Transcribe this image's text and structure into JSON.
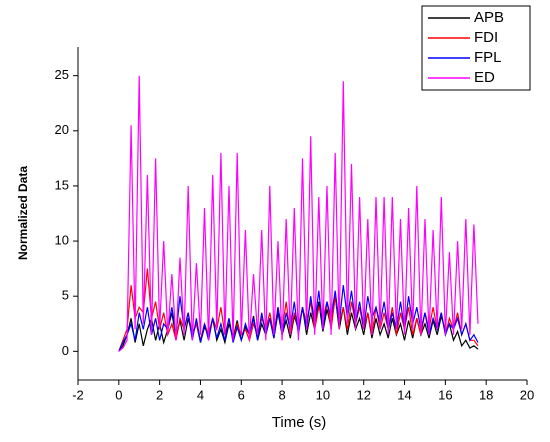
{
  "chart_data": {
    "type": "line",
    "xlabel": "Time (s)",
    "ylabel": "Normalized Data",
    "x": [
      0,
      0.2,
      0.4,
      0.6,
      0.8,
      1.0,
      1.2,
      1.4,
      1.6,
      1.8,
      2.0,
      2.2,
      2.4,
      2.6,
      2.8,
      3.0,
      3.2,
      3.4,
      3.6,
      3.8,
      4.0,
      4.2,
      4.4,
      4.6,
      4.8,
      5.0,
      5.2,
      5.4,
      5.6,
      5.8,
      6.0,
      6.2,
      6.4,
      6.6,
      6.8,
      7.0,
      7.2,
      7.4,
      7.6,
      7.8,
      8.0,
      8.2,
      8.4,
      8.6,
      8.8,
      9.0,
      9.2,
      9.4,
      9.6,
      9.8,
      10.0,
      10.2,
      10.4,
      10.6,
      10.8,
      11.0,
      11.2,
      11.4,
      11.6,
      11.8,
      12.0,
      12.2,
      12.4,
      12.6,
      12.8,
      13.0,
      13.2,
      13.4,
      13.6,
      13.8,
      14.0,
      14.2,
      14.4,
      14.6,
      14.8,
      15.0,
      15.2,
      15.4,
      15.6,
      15.8,
      16.0,
      16.2,
      16.4,
      16.6,
      16.8,
      17.0,
      17.2,
      17.4,
      17.6
    ],
    "series": [
      {
        "name": "APB",
        "color": "#000000",
        "values": [
          0,
          0.5,
          1.5,
          3,
          0.8,
          2.5,
          0.5,
          2,
          3,
          1,
          2.5,
          0.8,
          2,
          3.5,
          1.2,
          2.8,
          1,
          3,
          1.5,
          2.5,
          0.8,
          2.2,
          1.5,
          3,
          1,
          2,
          0.8,
          2.5,
          1.2,
          2.8,
          1,
          2.2,
          1.5,
          3.2,
          1,
          2.5,
          1.5,
          3,
          1.2,
          3.5,
          1.5,
          2.8,
          1.2,
          3.2,
          2,
          4,
          1.5,
          3.5,
          2,
          4.5,
          1.8,
          3.8,
          2.2,
          5,
          2,
          4,
          1.5,
          3.5,
          2,
          3,
          1.5,
          3.5,
          1.2,
          3,
          1.5,
          2.5,
          1.2,
          3,
          1.5,
          2.5,
          1,
          2.8,
          1.2,
          3,
          1.5,
          2.5,
          1.2,
          2.8,
          1.5,
          3.2,
          1.8,
          2.5,
          1,
          1.8,
          0.5,
          1,
          0.3,
          0.5,
          0.2
        ]
      },
      {
        "name": "FDI",
        "color": "#ff0000",
        "values": [
          0,
          1,
          2,
          6,
          3,
          4,
          3.5,
          7.5,
          3,
          4.5,
          2,
          3.5,
          1.5,
          2.5,
          1,
          3,
          2,
          3.5,
          1.5,
          2.5,
          1,
          2.5,
          1.5,
          3,
          2,
          4,
          1.5,
          3,
          1,
          2.5,
          1.5,
          2,
          1,
          2.5,
          1.5,
          3,
          2,
          3.5,
          1.5,
          4,
          2,
          4.5,
          1.5,
          3.5,
          2,
          4,
          2.5,
          4.5,
          2,
          4,
          3,
          4.5,
          2,
          5,
          2.5,
          4,
          2,
          4.5,
          2.5,
          4,
          2,
          3.5,
          1.5,
          4,
          2,
          3.5,
          2,
          4,
          1.5,
          3.5,
          2,
          4,
          1.5,
          3,
          1.5,
          3.5,
          2,
          4,
          2,
          3.5,
          1.5,
          3,
          2,
          3.5,
          1.5,
          2.5,
          1,
          1,
          0.5
        ]
      },
      {
        "name": "FPL",
        "color": "#0000ff",
        "values": [
          0,
          0.8,
          1.5,
          2.5,
          1,
          3.5,
          2,
          4,
          1.5,
          3,
          1,
          2.5,
          2,
          4,
          1.5,
          5,
          2,
          3.5,
          1,
          3,
          0.8,
          2.5,
          1,
          3,
          1.2,
          2.5,
          1,
          3,
          0.8,
          2.2,
          1,
          2.5,
          1.5,
          3,
          1,
          3.5,
          1.5,
          3,
          1.2,
          4,
          1.5,
          3.5,
          2,
          4.5,
          1.5,
          4,
          2,
          5,
          2.5,
          5.5,
          2,
          4.5,
          3,
          5.5,
          2.5,
          6,
          3,
          5.5,
          2.5,
          4.5,
          2,
          5,
          3,
          4,
          2.5,
          4.5,
          2,
          3.5,
          2,
          4.5,
          2,
          5,
          2.5,
          4,
          2,
          3.5,
          1.5,
          3,
          2,
          3.5,
          1.5,
          2.5,
          2,
          3,
          1.5,
          2.5,
          1,
          1.5,
          0.8
        ]
      },
      {
        "name": "ED",
        "color": "#ff00ff",
        "values": [
          0,
          0.3,
          1,
          20.5,
          2,
          25,
          2.5,
          16,
          1.5,
          17.5,
          2,
          10,
          1.5,
          7,
          1,
          8.5,
          1.5,
          15,
          1,
          8,
          1.5,
          13,
          1,
          16,
          2,
          18,
          1.5,
          15,
          1,
          18,
          1.5,
          11,
          1,
          7,
          1.5,
          11,
          1,
          15,
          1.5,
          10,
          1,
          12,
          1.5,
          13,
          1,
          17.5,
          2,
          19.5,
          1.5,
          14,
          2,
          15,
          1.5,
          18,
          2,
          24.5,
          2.5,
          17,
          2,
          14,
          2,
          12,
          1.5,
          14,
          2,
          14,
          1.5,
          14,
          2,
          12,
          1.5,
          13,
          2,
          15,
          1.5,
          12,
          1.5,
          11,
          2,
          14,
          1.5,
          9,
          1.5,
          10,
          2,
          12,
          1.5,
          11.5,
          2.5
        ]
      }
    ],
    "xlim": [
      -2,
      20
    ],
    "xticks": [
      -2,
      0,
      2,
      4,
      6,
      8,
      10,
      12,
      14,
      16,
      18,
      20
    ],
    "ylim": [
      -2.6,
      27.6
    ],
    "yticks": [
      0,
      5,
      10,
      15,
      20,
      25
    ],
    "grid": false,
    "legend": "upper right"
  }
}
